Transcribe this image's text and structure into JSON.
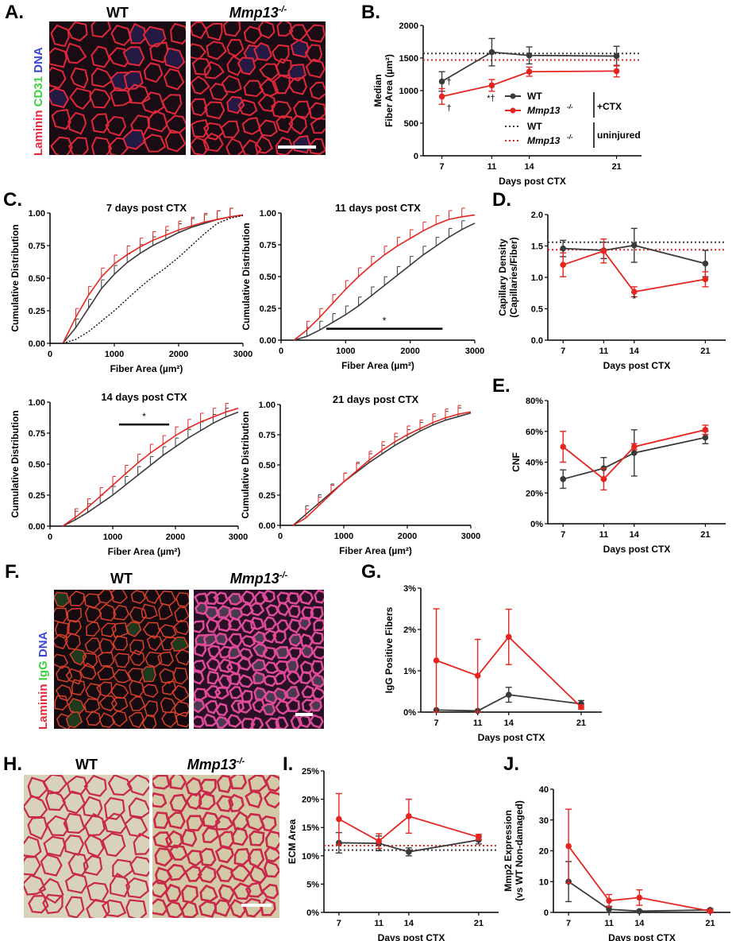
{
  "panels": {
    "A": {
      "letter": "A.",
      "wt": "WT",
      "ko": "Mmp13",
      "sup": "-/-",
      "stain": [
        {
          "text": "Laminin",
          "color": "#e8283c"
        },
        {
          "text": "CD31",
          "color": "#3fd23f"
        },
        {
          "text": "DNA",
          "color": "#3a47d8"
        }
      ]
    },
    "B": {
      "letter": "B."
    },
    "C": {
      "letter": "C."
    },
    "D": {
      "letter": "D."
    },
    "E": {
      "letter": "E."
    },
    "F": {
      "letter": "F.",
      "wt": "WT",
      "ko": "Mmp13",
      "sup": "-/-",
      "stain": [
        {
          "text": "Laminin",
          "color": "#e8283c"
        },
        {
          "text": "IgG",
          "color": "#3fd23f"
        },
        {
          "text": "DNA",
          "color": "#3a47d8"
        }
      ]
    },
    "G": {
      "letter": "G."
    },
    "H": {
      "letter": "H.",
      "wt": "WT",
      "ko": "Mmp13",
      "sup": "-/-"
    },
    "I": {
      "letter": "I."
    },
    "J": {
      "letter": "J."
    }
  },
  "colors": {
    "wt": "#3a3a3a",
    "ko": "#e52620"
  },
  "chart_data": [
    {
      "id": "B",
      "type": "line",
      "xlabel": "Days post CTX",
      "ylabel": [
        "Median",
        "Fiber Area (µm²)"
      ],
      "x": [
        7,
        11,
        14,
        21
      ],
      "xlim": [
        5.5,
        23
      ],
      "ylim": [
        0,
        2000
      ],
      "yticks": [
        "0",
        "500",
        "1000",
        "1500",
        "2000"
      ],
      "series": [
        {
          "name": "WT",
          "values": [
            1140,
            1590,
            1540,
            1530
          ],
          "err": [
            150,
            210,
            130,
            150
          ]
        },
        {
          "name": "Mmp13",
          "values": [
            910,
            1080,
            1290,
            1300
          ],
          "err": [
            120,
            90,
            70,
            90
          ]
        }
      ],
      "hlines": [
        {
          "value": 1570,
          "series": "WT"
        },
        {
          "value": 1470,
          "series": "Mmp13"
        }
      ],
      "annotations": [
        "†",
        "†",
        "*†"
      ],
      "legend": [
        {
          "label": "WT",
          "group": "+CTX",
          "style": "line"
        },
        {
          "label": "Mmp13",
          "sup": "-/-",
          "group": "+CTX",
          "style": "line"
        },
        {
          "label": "WT",
          "group": "uninjured",
          "style": "dotted"
        },
        {
          "label": "Mmp13",
          "sup": "-/-",
          "group": "uninjured",
          "style": "dotted"
        }
      ],
      "legend_groups": [
        "+CTX",
        "uninjured"
      ]
    },
    {
      "id": "C1",
      "type": "line",
      "title": "7 days post CTX",
      "xlabel": "Fiber Area (µm²)",
      "ylabel": "Cumulative Distribution",
      "x": [
        0,
        1000,
        2000,
        3000
      ],
      "xlim": [
        0,
        3000
      ],
      "ylim": [
        0,
        1
      ],
      "xticks": [
        "0",
        "1000",
        "2000",
        "3000"
      ],
      "yticks": [
        "0.00",
        "0.25",
        "0.50",
        "0.75",
        "1.00"
      ],
      "series": [
        {
          "name": "WT",
          "points": [
            [
              200,
              0.0
            ],
            [
              400,
              0.12
            ],
            [
              600,
              0.27
            ],
            [
              800,
              0.42
            ],
            [
              1000,
              0.53
            ],
            [
              1200,
              0.62
            ],
            [
              1400,
              0.69
            ],
            [
              1600,
              0.75
            ],
            [
              1800,
              0.8
            ],
            [
              2000,
              0.85
            ],
            [
              2200,
              0.89
            ],
            [
              2400,
              0.92
            ],
            [
              2600,
              0.95
            ],
            [
              2800,
              0.97
            ],
            [
              3000,
              0.985
            ]
          ]
        },
        {
          "name": "Mmp13",
          "points": [
            [
              200,
              0.0
            ],
            [
              400,
              0.2
            ],
            [
              600,
              0.37
            ],
            [
              800,
              0.51
            ],
            [
              1000,
              0.61
            ],
            [
              1200,
              0.68
            ],
            [
              1400,
              0.74
            ],
            [
              1600,
              0.79
            ],
            [
              1800,
              0.83
            ],
            [
              2000,
              0.87
            ],
            [
              2200,
              0.9
            ],
            [
              2400,
              0.93
            ],
            [
              2600,
              0.95
            ],
            [
              2800,
              0.97
            ],
            [
              3000,
              0.985
            ]
          ]
        },
        {
          "name": "WT uninjured",
          "points": [
            [
              200,
              0.0
            ],
            [
              400,
              0.03
            ],
            [
              600,
              0.09
            ],
            [
              800,
              0.17
            ],
            [
              1000,
              0.25
            ],
            [
              1200,
              0.34
            ],
            [
              1400,
              0.43
            ],
            [
              1600,
              0.51
            ],
            [
              1800,
              0.58
            ],
            [
              2000,
              0.66
            ],
            [
              2200,
              0.75
            ],
            [
              2400,
              0.84
            ],
            [
              2600,
              0.92
            ],
            [
              2800,
              0.96
            ],
            [
              3000,
              0.98
            ]
          ]
        }
      ]
    },
    {
      "id": "C2",
      "type": "line",
      "title": "11 days post CTX",
      "xlabel": "Fiber Area (µm²)",
      "ylabel": "Cumulative Distribution",
      "xlim": [
        0,
        3000
      ],
      "ylim": [
        0,
        1
      ],
      "xticks": [
        "0",
        "1000",
        "2000",
        "3000"
      ],
      "yticks": [
        "0.00",
        "0.25",
        "0.50",
        "0.75",
        "1.00"
      ],
      "annotation": "*",
      "sig_range": [
        700,
        2500
      ],
      "sig_y": 0.09,
      "series": [
        {
          "name": "WT",
          "points": [
            [
              200,
              0.0
            ],
            [
              400,
              0.03
            ],
            [
              600,
              0.08
            ],
            [
              800,
              0.14
            ],
            [
              1000,
              0.2
            ],
            [
              1200,
              0.27
            ],
            [
              1400,
              0.35
            ],
            [
              1600,
              0.43
            ],
            [
              1800,
              0.51
            ],
            [
              2000,
              0.59
            ],
            [
              2200,
              0.67
            ],
            [
              2400,
              0.74
            ],
            [
              2600,
              0.81
            ],
            [
              2800,
              0.87
            ],
            [
              3000,
              0.92
            ]
          ]
        },
        {
          "name": "Mmp13",
          "points": [
            [
              200,
              0.0
            ],
            [
              400,
              0.08
            ],
            [
              600,
              0.18
            ],
            [
              800,
              0.29
            ],
            [
              1000,
              0.4
            ],
            [
              1200,
              0.5
            ],
            [
              1400,
              0.59
            ],
            [
              1600,
              0.67
            ],
            [
              1800,
              0.74
            ],
            [
              2000,
              0.8
            ],
            [
              2200,
              0.86
            ],
            [
              2400,
              0.91
            ],
            [
              2600,
              0.95
            ],
            [
              2800,
              0.97
            ],
            [
              3000,
              0.985
            ]
          ]
        }
      ]
    },
    {
      "id": "C3",
      "type": "line",
      "title": "14 days post CTX",
      "xlabel": "Fiber Area (µm²)",
      "ylabel": "Cumulative Distribution",
      "xlim": [
        0,
        3000
      ],
      "ylim": [
        0,
        1
      ],
      "xticks": [
        "0",
        "1000",
        "2000",
        "3000"
      ],
      "yticks": [
        "0.00",
        "0.25",
        "0.50",
        "0.75",
        "1.00"
      ],
      "annotation": "*",
      "sig_range": [
        1100,
        1900
      ],
      "sig_y": 0.82,
      "series": [
        {
          "name": "WT",
          "points": [
            [
              200,
              0.0
            ],
            [
              400,
              0.05
            ],
            [
              600,
              0.11
            ],
            [
              800,
              0.18
            ],
            [
              1000,
              0.25
            ],
            [
              1200,
              0.33
            ],
            [
              1400,
              0.41
            ],
            [
              1600,
              0.49
            ],
            [
              1800,
              0.57
            ],
            [
              2000,
              0.64
            ],
            [
              2200,
              0.71
            ],
            [
              2400,
              0.77
            ],
            [
              2600,
              0.83
            ],
            [
              2800,
              0.88
            ],
            [
              3000,
              0.92
            ]
          ]
        },
        {
          "name": "Mmp13",
          "points": [
            [
              200,
              0.0
            ],
            [
              400,
              0.07
            ],
            [
              600,
              0.15
            ],
            [
              800,
              0.24
            ],
            [
              1000,
              0.33
            ],
            [
              1200,
              0.42
            ],
            [
              1400,
              0.51
            ],
            [
              1600,
              0.59
            ],
            [
              1800,
              0.66
            ],
            [
              2000,
              0.73
            ],
            [
              2200,
              0.79
            ],
            [
              2400,
              0.84
            ],
            [
              2600,
              0.88
            ],
            [
              2800,
              0.92
            ],
            [
              3000,
              0.95
            ]
          ]
        }
      ]
    },
    {
      "id": "C4",
      "type": "line",
      "title": "21 days post CTX",
      "xlabel": "Fiber Area (µm²)",
      "ylabel": "Cumulative Distribution",
      "xlim": [
        0,
        3000
      ],
      "ylim": [
        0,
        1
      ],
      "xticks": [
        "0",
        "1000",
        "2000",
        "3000"
      ],
      "yticks": [
        "0.00",
        "0.25",
        "0.50",
        "0.75",
        "1.00"
      ],
      "series": [
        {
          "name": "WT",
          "points": [
            [
              200,
              0.0
            ],
            [
              400,
              0.09
            ],
            [
              600,
              0.18
            ],
            [
              800,
              0.27
            ],
            [
              1000,
              0.36
            ],
            [
              1200,
              0.44
            ],
            [
              1400,
              0.52
            ],
            [
              1600,
              0.59
            ],
            [
              1800,
              0.66
            ],
            [
              2000,
              0.72
            ],
            [
              2200,
              0.78
            ],
            [
              2400,
              0.83
            ],
            [
              2600,
              0.87
            ],
            [
              2800,
              0.9
            ],
            [
              3000,
              0.93
            ]
          ]
        },
        {
          "name": "Mmp13",
          "points": [
            [
              200,
              0.0
            ],
            [
              400,
              0.06
            ],
            [
              600,
              0.16
            ],
            [
              800,
              0.26
            ],
            [
              1000,
              0.36
            ],
            [
              1200,
              0.45
            ],
            [
              1400,
              0.54
            ],
            [
              1600,
              0.62
            ],
            [
              1800,
              0.69
            ],
            [
              2000,
              0.75
            ],
            [
              2200,
              0.8
            ],
            [
              2400,
              0.85
            ],
            [
              2600,
              0.89
            ],
            [
              2800,
              0.92
            ],
            [
              3000,
              0.94
            ]
          ]
        }
      ]
    },
    {
      "id": "D",
      "type": "line",
      "xlabel": "Days post CTX",
      "ylabel": [
        "Capillary Density",
        "(Capillaries/Fiber)"
      ],
      "x": [
        7,
        11,
        14,
        21
      ],
      "xlim": [
        5.5,
        23
      ],
      "ylim": [
        0,
        2
      ],
      "yticks": [
        "0.0",
        "0.5",
        "1.0",
        "1.5",
        "2.0"
      ],
      "series": [
        {
          "name": "WT",
          "values": [
            1.46,
            1.43,
            1.51,
            1.22
          ],
          "err": [
            0.13,
            0.13,
            0.27,
            0.21
          ]
        },
        {
          "name": "Mmp13",
          "values": [
            1.2,
            1.42,
            0.77,
            0.97
          ],
          "err": [
            0.19,
            0.19,
            0.08,
            0.12
          ]
        }
      ],
      "hlines": [
        {
          "value": 1.56,
          "series": "WT"
        },
        {
          "value": 1.44,
          "series": "Mmp13"
        }
      ],
      "annotations": [
        "*"
      ]
    },
    {
      "id": "E",
      "type": "line",
      "xlabel": "Days post CTX",
      "ylabel": "CNF",
      "x": [
        7,
        11,
        14,
        21
      ],
      "xlim": [
        5.5,
        23
      ],
      "ylim": [
        0,
        80
      ],
      "yticks": [
        "0%",
        "20%",
        "40%",
        "60%",
        "80%"
      ],
      "series": [
        {
          "name": "WT",
          "values": [
            29,
            36,
            46,
            56
          ],
          "err": [
            6,
            7,
            15,
            4
          ]
        },
        {
          "name": "Mmp13",
          "values": [
            50,
            29,
            50,
            61
          ],
          "err": [
            10,
            7,
            2,
            3
          ]
        }
      ]
    },
    {
      "id": "G",
      "type": "line",
      "xlabel": "Days post CTX",
      "ylabel": "IgG Positive Fibers",
      "x": [
        7,
        11,
        14,
        21
      ],
      "xlim": [
        5.5,
        23
      ],
      "ylim": [
        0,
        3
      ],
      "yticks": [
        "0%",
        "1%",
        "2%",
        "3%"
      ],
      "series": [
        {
          "name": "WT",
          "values": [
            0.05,
            0.03,
            0.42,
            0.2
          ],
          "err": [
            0,
            0,
            0.18,
            0.08
          ]
        },
        {
          "name": "Mmp13",
          "values": [
            1.25,
            0.88,
            1.82,
            0.12
          ],
          "err": [
            1.25,
            0.88,
            0.67,
            0.05
          ]
        }
      ]
    },
    {
      "id": "I",
      "type": "line",
      "xlabel": "Days post CTX",
      "ylabel": "ECM Area",
      "x": [
        7,
        11,
        14,
        21
      ],
      "xlim": [
        5.5,
        23
      ],
      "ylim": [
        0,
        25
      ],
      "yticks": [
        "0%",
        "5%",
        "10%",
        "15%",
        "20%",
        "25%"
      ],
      "series": [
        {
          "name": "WT",
          "values": [
            12.3,
            12.2,
            10.7,
            12.8
          ],
          "err": [
            1.8,
            1.3,
            0.7,
            0.7
          ]
        },
        {
          "name": "Mmp13",
          "values": [
            16.5,
            12.6,
            17.0,
            13.3
          ],
          "err": [
            4.5,
            1.3,
            3.0,
            0.5
          ]
        }
      ],
      "hlines": [
        {
          "value": 11.0,
          "series": "WT"
        },
        {
          "value": 11.8,
          "series": "Mmp13"
        }
      ]
    },
    {
      "id": "J",
      "type": "line",
      "xlabel": "Days post CTX",
      "ylabel": [
        "Mmp2 Expression",
        "(vs WT Non-damaged)"
      ],
      "x": [
        7,
        11,
        14,
        21
      ],
      "xlim": [
        5.5,
        23
      ],
      "ylim": [
        0,
        40
      ],
      "yticks": [
        "0",
        "10",
        "20",
        "30",
        "40"
      ],
      "series": [
        {
          "name": "WT",
          "values": [
            10,
            1.0,
            0.4,
            0.8
          ],
          "err": [
            6.5,
            1.0,
            0.3,
            0.4
          ]
        },
        {
          "name": "Mmp13",
          "values": [
            21.5,
            3.8,
            4.8,
            0.4
          ],
          "err": [
            12,
            2.0,
            2.5,
            0.3
          ]
        }
      ]
    }
  ]
}
